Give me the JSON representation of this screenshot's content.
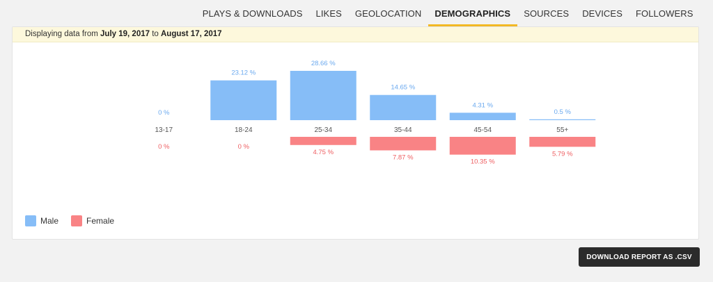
{
  "tabs": [
    {
      "label": "PLAYS & DOWNLOADS",
      "active": false
    },
    {
      "label": "LIKES",
      "active": false
    },
    {
      "label": "GEOLOCATION",
      "active": false
    },
    {
      "label": "DEMOGRAPHICS",
      "active": true
    },
    {
      "label": "SOURCES",
      "active": false
    },
    {
      "label": "DEVICES",
      "active": false
    },
    {
      "label": "FOLLOWERS",
      "active": false
    }
  ],
  "banner": {
    "prefix": "Displaying data from ",
    "start_date": "July 19, 2017",
    "connector": " to ",
    "end_date": "August 17, 2017"
  },
  "legend": {
    "male_label": "Male",
    "female_label": "Female"
  },
  "colors": {
    "male": "#86bdf7",
    "female": "#f98385",
    "accent": "#f2b824"
  },
  "download_button": "DOWNLOAD REPORT AS .CSV",
  "chart_data": {
    "type": "bar",
    "categories": [
      "13-17",
      "18-24",
      "25-34",
      "35-44",
      "45-54",
      "55+"
    ],
    "series": [
      {
        "name": "Male",
        "values": [
          0,
          23.12,
          28.66,
          14.65,
          4.31,
          0.5
        ],
        "labels": [
          "0 %",
          "23.12 %",
          "28.66 %",
          "14.65 %",
          "4.31 %",
          "0.5 %"
        ],
        "direction": "up"
      },
      {
        "name": "Female",
        "values": [
          0,
          0,
          4.75,
          7.87,
          10.35,
          5.79
        ],
        "labels": [
          "0 %",
          "0 %",
          "4.75 %",
          "7.87 %",
          "10.35 %",
          "5.79 %"
        ],
        "direction": "down"
      }
    ],
    "unit": "%",
    "title": "",
    "xlabel": "",
    "ylabel": "",
    "grid": false,
    "legend_position": "bottom-left"
  }
}
